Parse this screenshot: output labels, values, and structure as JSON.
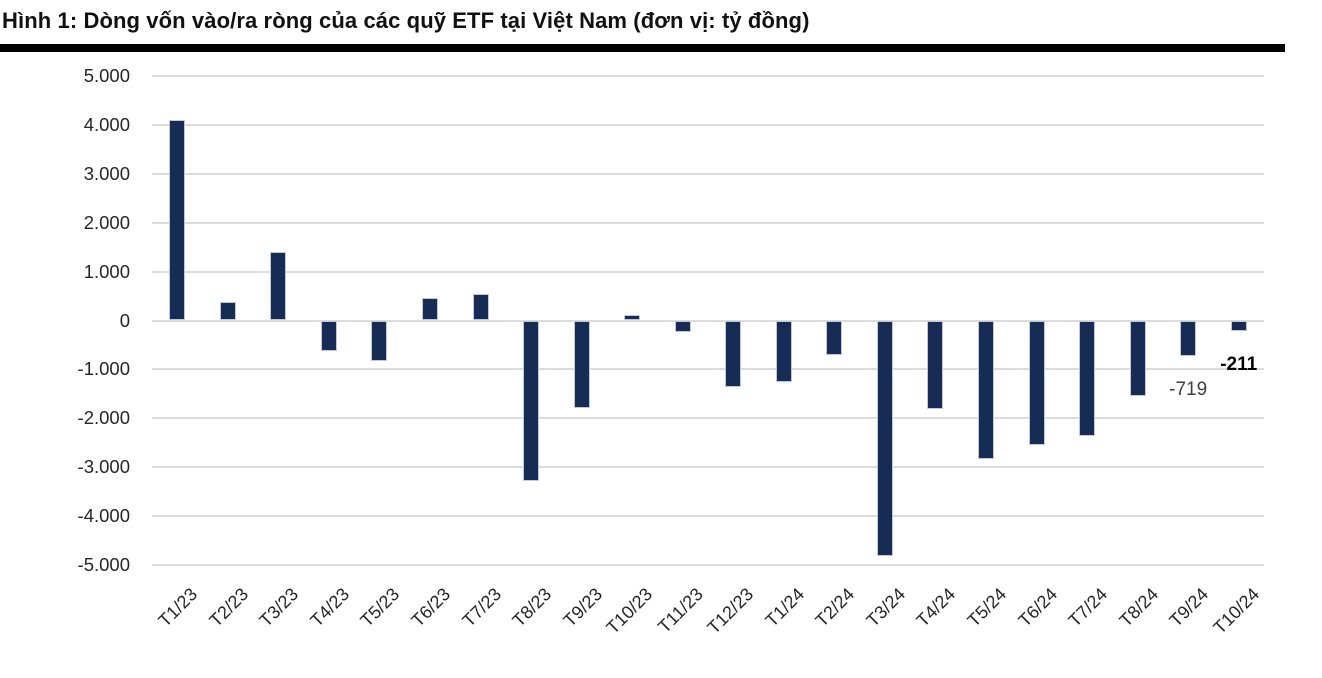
{
  "figure": {
    "title": "Hình 1: Dòng vốn vào/ra ròng của các quỹ ETF tại Việt Nam (đơn vị: tỷ đồng)"
  },
  "chart_data": {
    "type": "bar",
    "title": "Hình 1: Dòng vốn vào/ra ròng của các quỹ ETF tại Việt Nam",
    "unit": "tỷ đồng",
    "categories": [
      "T1/23",
      "T2/23",
      "T3/23",
      "T4/23",
      "T5/23",
      "T6/23",
      "T7/23",
      "T8/23",
      "T9/23",
      "T10/23",
      "T11/23",
      "T12/23",
      "T1/24",
      "T2/24",
      "T3/24",
      "T4/24",
      "T5/24",
      "T6/24",
      "T7/24",
      "T8/24",
      "T9/24",
      "T10/24"
    ],
    "values": [
      4100,
      380,
      1400,
      -620,
      -820,
      460,
      550,
      -3280,
      -1790,
      120,
      -230,
      -1360,
      -1250,
      -700,
      -4820,
      -1810,
      -2840,
      -2550,
      -2370,
      -1540,
      -719,
      -211
    ],
    "xlabel": "",
    "ylabel": "",
    "ylim": [
      -5000,
      5000
    ],
    "ytick_step": 1000,
    "ytick_labels": [
      "5.000",
      "4.000",
      "3.000",
      "2.000",
      "1.000",
      "0",
      "-1.000",
      "-2.000",
      "-3.000",
      "-4.000",
      "-5.000"
    ],
    "grid": "horizontal",
    "legend": "none",
    "bar_color": "#172C55",
    "gridline_color": "#DBDBDB",
    "data_labels": [
      {
        "category": "T9/24",
        "text": "-719",
        "bold": false
      },
      {
        "category": "T10/24",
        "text": "-211",
        "bold": true
      }
    ]
  }
}
